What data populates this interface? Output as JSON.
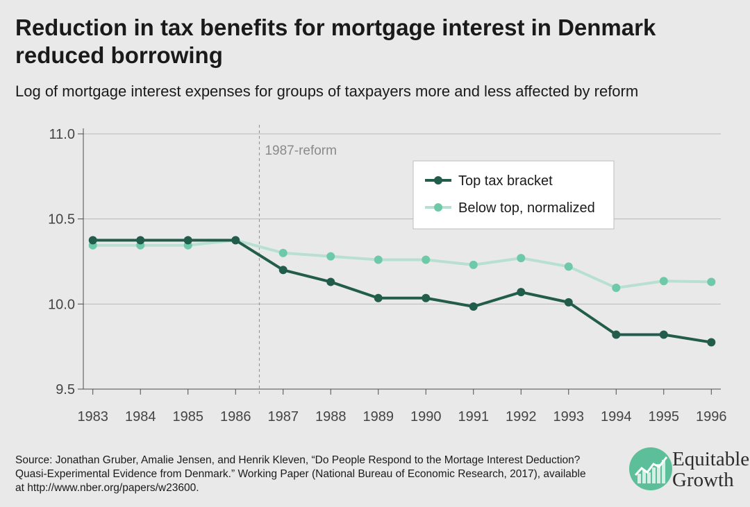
{
  "title": "Reduction in tax benefits for mortgage interest in Denmark reduced borrowing",
  "subtitle": "Log of mortgage interest expenses for groups of taxpayers more and less affected by reform",
  "source": "Source: Jonathan Gruber, Amalie Jensen, and Henrik Kleven, “Do People Respond to the Mortage Interest Deduction? Quasi-Experimental Evidence from Denmark.” Working Paper (National Bureau of Economic Research, 2017), available at http://www.nber.org/papers/w23600.",
  "logo": {
    "line1": "Equitable",
    "line2": "Growth",
    "icon": "growth-chart-icon"
  },
  "colors": {
    "top": "#225c4a",
    "below": "#6ec9a8",
    "below_line": "#b7e0d2",
    "grid": "#b9b9b9",
    "axis": "#4a4a4a"
  },
  "chart_data": {
    "type": "line",
    "x": [
      1983,
      1984,
      1985,
      1986,
      1987,
      1988,
      1989,
      1990,
      1991,
      1992,
      1993,
      1994,
      1995,
      1996
    ],
    "xtick_labels": [
      "1983",
      "1984",
      "1985",
      "1986",
      "1987",
      "1988",
      "1989",
      "1990",
      "1991",
      "1992",
      "1993",
      "1994",
      "1995",
      "1996"
    ],
    "series": [
      {
        "name": "Top tax bracket",
        "color": "#225c4a",
        "values": [
          10.375,
          10.375,
          10.375,
          10.375,
          10.2,
          10.13,
          10.035,
          10.035,
          9.985,
          10.07,
          10.01,
          9.82,
          9.82,
          9.775
        ]
      },
      {
        "name": "Below top, normalized",
        "color": "#6ec9a8",
        "values": [
          10.345,
          10.345,
          10.345,
          10.375,
          10.3,
          10.28,
          10.26,
          10.26,
          10.23,
          10.27,
          10.22,
          10.095,
          10.135,
          10.13
        ]
      }
    ],
    "ylim": [
      9.5,
      11.0
    ],
    "yticks": [
      9.5,
      10.0,
      10.5,
      11.0
    ],
    "ytick_labels": [
      "9.5",
      "10.0",
      "10.5",
      "11.0"
    ],
    "xlim": [
      1982.8,
      1996.2
    ],
    "annotations": [
      {
        "text": "1987-reform",
        "x": 1986.5
      }
    ],
    "legend": {
      "position": "top-right"
    },
    "grid": true,
    "xlabel": "",
    "ylabel": ""
  }
}
